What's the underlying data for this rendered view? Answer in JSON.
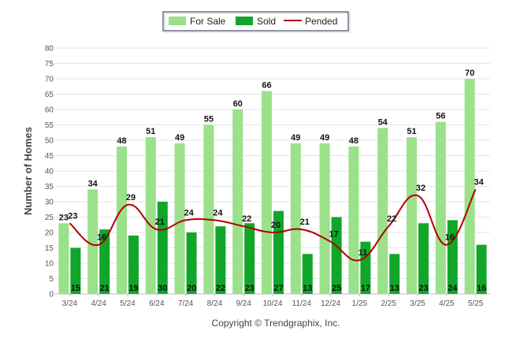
{
  "chart_data": {
    "type": "bar",
    "categories": [
      "3/24",
      "4/24",
      "5/24",
      "6/24",
      "7/24",
      "8/24",
      "9/24",
      "10/24",
      "11/24",
      "12/24",
      "1/25",
      "2/25",
      "3/25",
      "4/25",
      "5/25"
    ],
    "series": [
      {
        "name": "For Sale",
        "kind": "bar",
        "color": "#9be08a",
        "values": [
          23,
          34,
          48,
          51,
          49,
          55,
          60,
          66,
          49,
          49,
          48,
          54,
          51,
          56,
          70
        ]
      },
      {
        "name": "Sold",
        "kind": "bar",
        "color": "#11a62a",
        "values": [
          15,
          21,
          19,
          30,
          20,
          22,
          23,
          27,
          13,
          25,
          17,
          13,
          23,
          24,
          16
        ]
      },
      {
        "name": "Pended",
        "kind": "line",
        "color": "#b00000",
        "values": [
          23,
          16,
          29,
          21,
          24,
          24,
          22,
          20,
          21,
          17,
          11,
          22,
          32,
          16,
          34
        ]
      }
    ],
    "ylabel": "Number of Homes",
    "xlabel": "",
    "ylim": [
      0,
      80
    ],
    "yticks": [
      0,
      5,
      10,
      15,
      20,
      25,
      30,
      35,
      40,
      45,
      50,
      55,
      60,
      65,
      70,
      75,
      80
    ],
    "grid": true,
    "legend_position": "top-center",
    "footer": "Copyright © Trendgraphix, Inc."
  }
}
